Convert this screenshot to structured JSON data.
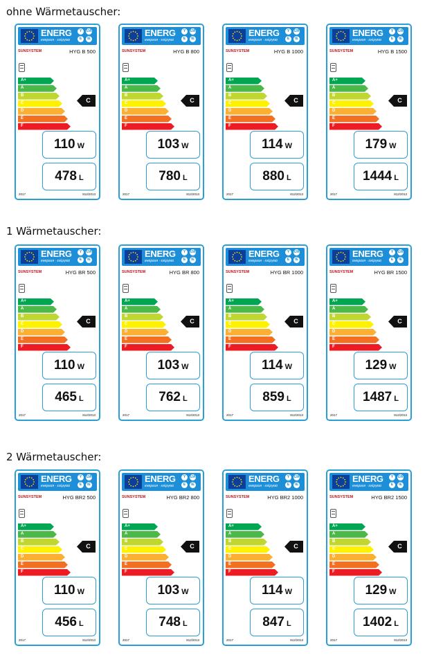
{
  "groups": [
    {
      "title": "ohne Wärmetauscher:",
      "labels": [
        {
          "model": "HYG B 500",
          "watts": "110",
          "liters": "478"
        },
        {
          "model": "HYG B 800",
          "watts": "103",
          "liters": "780"
        },
        {
          "model": "HYG B 1000",
          "watts": "114",
          "liters": "880"
        },
        {
          "model": "HYG B 1500",
          "watts": "179",
          "liters": "1444"
        }
      ]
    },
    {
      "title": "1 Wärmetauscher:",
      "labels": [
        {
          "model": "HYG BR 500",
          "watts": "110",
          "liters": "465"
        },
        {
          "model": "HYG BR 800",
          "watts": "103",
          "liters": "762"
        },
        {
          "model": "HYG BR 1000",
          "watts": "114",
          "liters": "859"
        },
        {
          "model": "HYG BR 1500",
          "watts": "129",
          "liters": "1487"
        }
      ]
    },
    {
      "title": "2 Wärmetauscher:",
      "labels": [
        {
          "model": "HYG BR2 500",
          "watts": "110",
          "liters": "456"
        },
        {
          "model": "HYG BR2 800",
          "watts": "103",
          "liters": "748"
        },
        {
          "model": "HYG BR2 1000",
          "watts": "114",
          "liters": "847"
        },
        {
          "model": "HYG BR2 1500",
          "watts": "129",
          "liters": "1402"
        }
      ]
    }
  ],
  "common": {
    "energ": "ENERG",
    "energ_sub": "енергия · ενέργεια",
    "ie_letters": [
      "Y",
      "IJA",
      "E",
      "IE"
    ],
    "brand": "SUNSYSTEM",
    "rating": "C",
    "watt_unit": "W",
    "liter_unit": "L",
    "year": "2017",
    "regulation": "812/2013",
    "scale": [
      {
        "letter": "A+",
        "color": "#00a651"
      },
      {
        "letter": "A",
        "color": "#4cb848"
      },
      {
        "letter": "B",
        "color": "#bfd730"
      },
      {
        "letter": "C",
        "color": "#fff200"
      },
      {
        "letter": "D",
        "color": "#fbb034"
      },
      {
        "letter": "E",
        "color": "#f36f21"
      },
      {
        "letter": "F",
        "color": "#ed1c24"
      }
    ]
  }
}
